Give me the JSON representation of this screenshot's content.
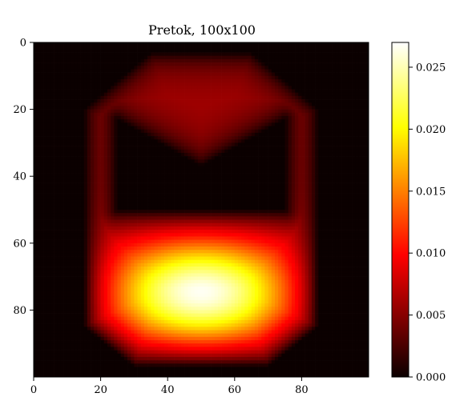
{
  "chart_data": {
    "type": "heatmap",
    "title": "Pretok, 100x100",
    "xlabel": "",
    "ylabel": "",
    "grid_size": [
      100,
      100
    ],
    "xlim": [
      0,
      100
    ],
    "ylim": [
      100,
      0
    ],
    "x_ticks": [
      0,
      20,
      40,
      60,
      80
    ],
    "y_ticks": [
      0,
      20,
      40,
      60,
      80
    ],
    "colormap": "hot",
    "colorbar": {
      "min": 0.0,
      "max": 0.027,
      "ticks": [
        0.0,
        0.005,
        0.01,
        0.015,
        0.02,
        0.025
      ],
      "tick_labels": [
        "0.000",
        "0.005",
        "0.010",
        "0.015",
        "0.020",
        "0.025"
      ],
      "placement": "right"
    },
    "grid": false,
    "peak": {
      "x": 50,
      "y": 75,
      "value": 0.027
    }
  }
}
